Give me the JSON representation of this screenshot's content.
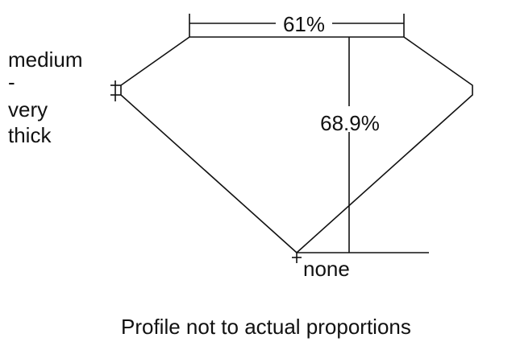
{
  "diagram": {
    "table_percent": "61%",
    "depth_percent": "68.9%",
    "girdle_label_lines": [
      "medium",
      "-",
      "very",
      "thick"
    ],
    "culet_label": "none",
    "footnote": "Profile not to actual proportions"
  },
  "colors": {
    "stroke": "#111111",
    "background": "#ffffff"
  }
}
